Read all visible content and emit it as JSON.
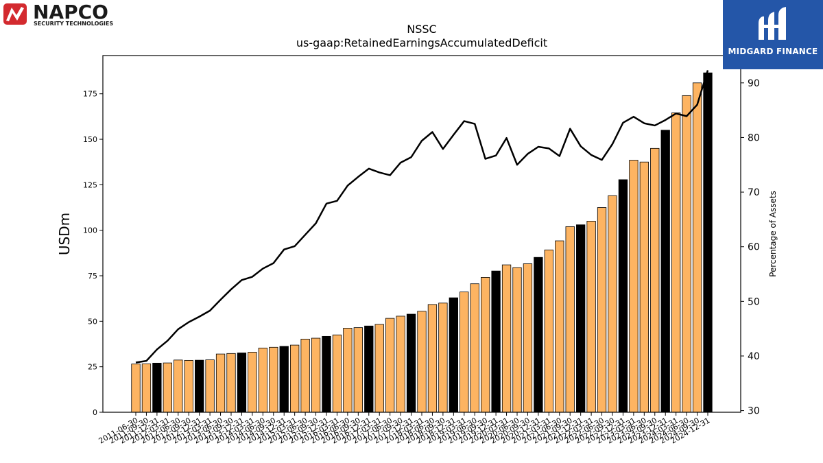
{
  "branding": {
    "napco_name": "NAPCO",
    "napco_tagline": "SECURITY TECHNOLOGIES",
    "midgard_name": "MIDGARD FINANCE"
  },
  "chart_data": {
    "type": "bar",
    "title": "NSSC",
    "subtitle": "us-gaap:RetainedEarningsAccumulatedDeficit",
    "ylabel": "USDm",
    "y2label": "Percentage of Assets",
    "ylim": [
      0,
      196
    ],
    "y2lim": [
      29.7,
      95.0
    ],
    "yticks": [
      0,
      25,
      50,
      75,
      100,
      125,
      150,
      175
    ],
    "y2ticks": [
      30,
      40,
      50,
      60,
      70,
      80,
      90
    ],
    "colors": {
      "bar": "#fdb462",
      "bar_fy": "#000000",
      "line": "#000000"
    },
    "categories": [
      "2011-06-30",
      "2011-09-30",
      "2011-12-31",
      "2012-03-31",
      "2012-06-30",
      "2012-09-30",
      "2012-12-31",
      "2013-03-31",
      "2013-06-30",
      "2013-09-30",
      "2013-12-31",
      "2014-03-31",
      "2014-06-30",
      "2014-09-30",
      "2014-12-31",
      "2015-03-31",
      "2015-06-30",
      "2015-09-30",
      "2015-12-31",
      "2016-03-31",
      "2016-06-30",
      "2016-09-30",
      "2016-12-31",
      "2017-03-31",
      "2017-06-30",
      "2017-09-30",
      "2017-12-31",
      "2018-03-31",
      "2018-06-30",
      "2018-09-30",
      "2018-12-31",
      "2019-03-31",
      "2019-06-30",
      "2019-09-30",
      "2019-12-31",
      "2020-03-31",
      "2020-06-30",
      "2020-09-30",
      "2020-12-31",
      "2021-03-31",
      "2021-06-30",
      "2021-09-30",
      "2021-12-31",
      "2022-03-31",
      "2022-06-30",
      "2022-09-30",
      "2022-12-31",
      "2023-03-31",
      "2023-06-30",
      "2023-09-30",
      "2023-12-31",
      "2024-03-31",
      "2024-06-30",
      "2024-09-30",
      "2024-12-31"
    ],
    "series": [
      {
        "name": "",
        "values": [
          26.5,
          26.6,
          27.0,
          27.1,
          28.7,
          28.5,
          28.6,
          28.8,
          32.0,
          32.3,
          32.6,
          33.0,
          35.3,
          35.7,
          36.2,
          36.9,
          40.2,
          40.7,
          41.7,
          42.5,
          46.2,
          46.5,
          47.4,
          48.3,
          51.6,
          52.8,
          53.9,
          55.5,
          59.2,
          60.0,
          62.9,
          66.1,
          70.6,
          74.1,
          77.6,
          81.0,
          79.5,
          81.6,
          85.1,
          89.2,
          94.2,
          102.0,
          103.0,
          105.0,
          112.5,
          119.0,
          127.8,
          138.5,
          137.5,
          145.0,
          155.0,
          164.5,
          174.0,
          181.0,
          186.5
        ],
        "highlight": [
          false,
          false,
          true,
          false,
          false,
          false,
          true,
          false,
          false,
          false,
          true,
          false,
          false,
          false,
          true,
          false,
          false,
          false,
          true,
          false,
          false,
          false,
          true,
          false,
          false,
          false,
          true,
          false,
          false,
          false,
          true,
          false,
          false,
          false,
          true,
          false,
          false,
          false,
          true,
          false,
          false,
          false,
          true,
          false,
          false,
          false,
          true,
          false,
          false,
          false,
          true,
          false,
          false,
          false,
          true
        ]
      },
      {
        "name": "",
        "axis": "y2",
        "values": [
          38.8,
          39.1,
          41.2,
          42.8,
          44.9,
          46.2,
          47.2,
          48.3,
          50.3,
          52.2,
          53.9,
          54.5,
          56.0,
          57.0,
          59.5,
          60.1,
          62.2,
          64.3,
          67.9,
          68.4,
          71.2,
          72.8,
          74.3,
          73.6,
          73.1,
          75.4,
          76.4,
          79.4,
          81.0,
          77.9,
          80.5,
          83.0,
          82.5,
          76.1,
          76.7,
          79.9,
          75.0,
          77.0,
          78.3,
          78.0,
          76.6,
          81.6,
          78.4,
          76.8,
          75.9,
          78.8,
          82.7,
          83.8,
          82.6,
          82.2,
          83.2,
          84.4,
          83.9,
          86.0,
          92.3
        ]
      }
    ]
  }
}
